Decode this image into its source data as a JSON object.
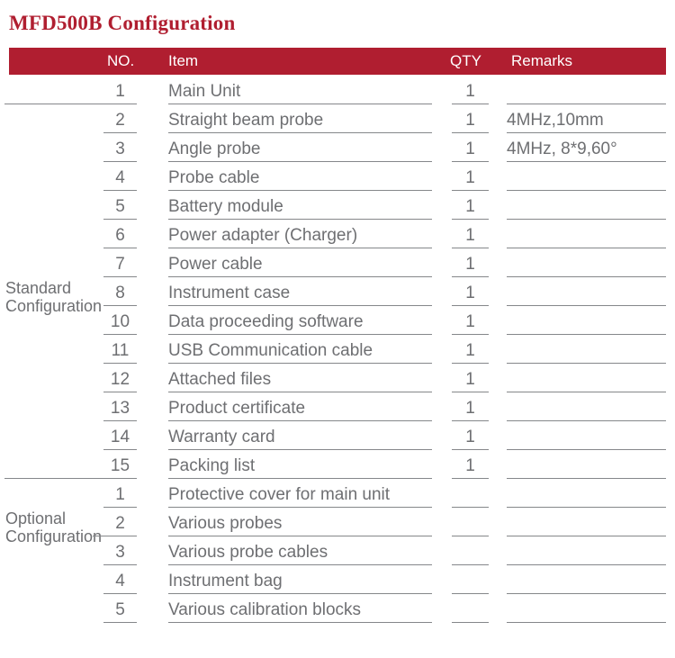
{
  "title": "MFD500B Configuration",
  "colors": {
    "accent_red": "#b01e30",
    "text_gray": "#6e6f72",
    "line_gray": "#85878a"
  },
  "table": {
    "headers": {
      "no": "NO.",
      "item": "Item",
      "qty": "QTY",
      "remarks": "Remarks"
    },
    "sections": [
      {
        "label": "Standard Configuration",
        "label_line1": "Standard",
        "label_line2": "Configuration",
        "rows": [
          {
            "no": "1",
            "item": "Main Unit",
            "qty": "1",
            "remarks": ""
          },
          {
            "no": "2",
            "item": "Straight beam probe",
            "qty": "1",
            "remarks": "4MHz,10mm"
          },
          {
            "no": "3",
            "item": "Angle probe",
            "qty": "1",
            "remarks": "4MHz, 8*9,60°"
          },
          {
            "no": "4",
            "item": "Probe cable",
            "qty": "1",
            "remarks": ""
          },
          {
            "no": "5",
            "item": "Battery module",
            "qty": "1",
            "remarks": ""
          },
          {
            "no": "6",
            "item": "Power adapter (Charger)",
            "qty": "1",
            "remarks": ""
          },
          {
            "no": "7",
            "item": "Power cable",
            "qty": "1",
            "remarks": ""
          },
          {
            "no": "8",
            "item": "Instrument case",
            "qty": "1",
            "remarks": ""
          },
          {
            "no": "10",
            "item": "Data proceeding software",
            "qty": "1",
            "remarks": ""
          },
          {
            "no": "11",
            "item": "USB Communication cable",
            "qty": "1",
            "remarks": ""
          },
          {
            "no": "12",
            "item": "Attached files",
            "qty": "1",
            "remarks": ""
          },
          {
            "no": "13",
            "item": "Product certificate",
            "qty": "1",
            "remarks": ""
          },
          {
            "no": "14",
            "item": "Warranty card",
            "qty": "1",
            "remarks": ""
          },
          {
            "no": "15",
            "item": "Packing list",
            "qty": "1",
            "remarks": ""
          }
        ]
      },
      {
        "label": "Optional Configuration",
        "label_line1": "Optional",
        "label_line2": "Configuration",
        "rows": [
          {
            "no": "1",
            "item": "Protective cover for main unit",
            "qty": "",
            "remarks": ""
          },
          {
            "no": "2",
            "item": "Various probes",
            "qty": "",
            "remarks": ""
          },
          {
            "no": "3",
            "item": "Various probe cables",
            "qty": "",
            "remarks": ""
          },
          {
            "no": "4",
            "item": "Instrument bag",
            "qty": "",
            "remarks": ""
          },
          {
            "no": "5",
            "item": "Various calibration blocks",
            "qty": "",
            "remarks": ""
          }
        ]
      }
    ]
  }
}
